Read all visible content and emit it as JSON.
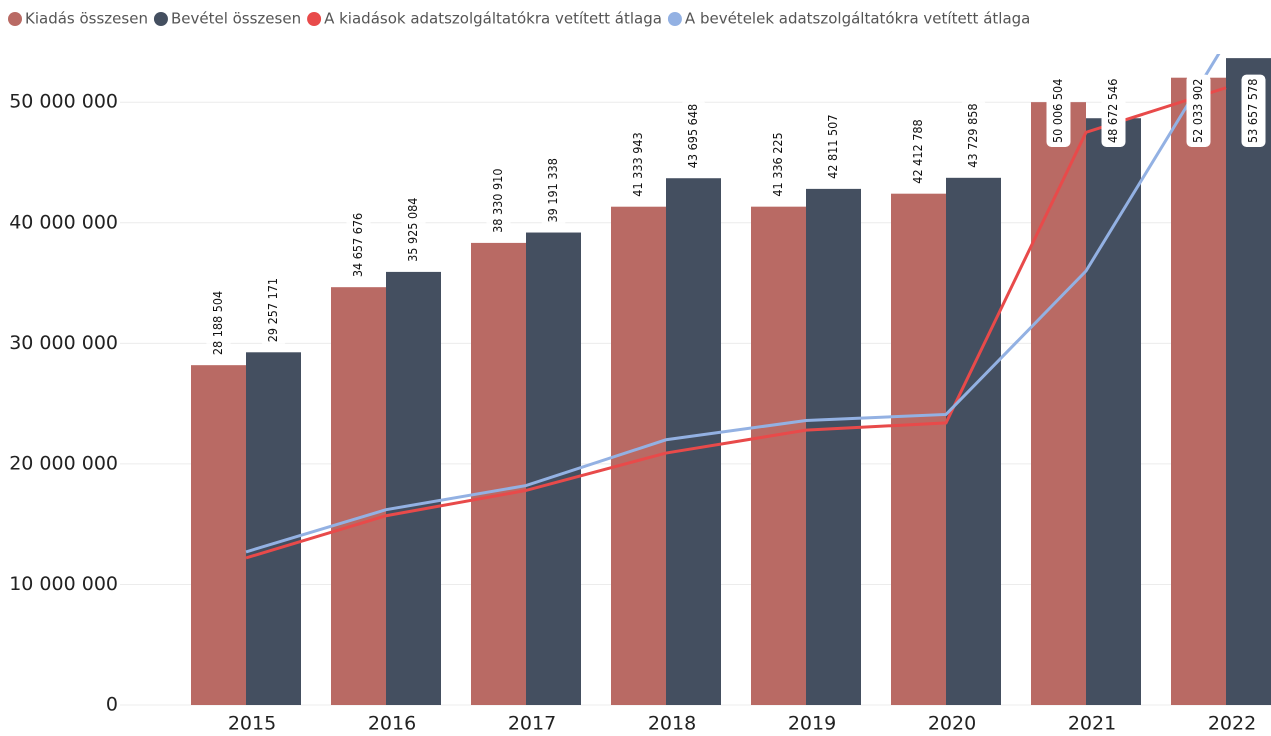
{
  "chart_data": {
    "type": "bar",
    "categories": [
      "2015",
      "2016",
      "2017",
      "2018",
      "2019",
      "2020",
      "2021",
      "2022"
    ],
    "series": [
      {
        "name": "Kiadás összesen",
        "color": "#b96a64",
        "type": "bar",
        "values": [
          28188504,
          34657676,
          38330910,
          41333943,
          41336225,
          42412788,
          50006504,
          52033902
        ],
        "value_labels": [
          "28 188 504",
          "34 657 676",
          "38 330 910",
          "41 333 943",
          "41 336 225",
          "42 412 788",
          "50 006 504",
          "52 033 902"
        ]
      },
      {
        "name": "Bevétel összesen",
        "color": "#444f60",
        "type": "bar",
        "values": [
          29257171,
          35925084,
          39191338,
          43695648,
          42811507,
          43729858,
          48672546,
          53657578
        ],
        "value_labels": [
          "29 257 171",
          "35 925 084",
          "39 191 338",
          "43 695 648",
          "42 811 507",
          "43 729 858",
          "48 672 546",
          "53 657 578"
        ]
      },
      {
        "name": "A kiadások adatszolgáltatókra vetített átlaga",
        "color": "#e84a4a",
        "type": "line",
        "values": [
          12200000,
          15700000,
          17800000,
          20900000,
          22800000,
          23400000,
          47500000,
          51200000
        ]
      },
      {
        "name": "A bevételek adatszolgáltatókra vetített átlaga",
        "color": "#93b1e3",
        "type": "line",
        "values": [
          12700000,
          16200000,
          18200000,
          22000000,
          23600000,
          24100000,
          36000000,
          55000000
        ]
      }
    ],
    "ylim": [
      0,
      54000000
    ],
    "yticks": [
      {
        "value": 0,
        "label": "0"
      },
      {
        "value": 10000000,
        "label": "10 000 000"
      },
      {
        "value": 20000000,
        "label": "20 000 000"
      },
      {
        "value": 30000000,
        "label": "30 000 000"
      },
      {
        "value": 40000000,
        "label": "40 000 000"
      },
      {
        "value": 50000000,
        "label": "50 000 000"
      }
    ],
    "grid": true
  }
}
